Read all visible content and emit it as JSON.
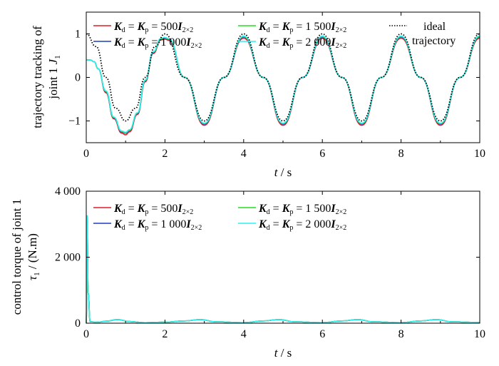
{
  "chart_data": [
    {
      "type": "line",
      "ylabel_line1": "trajectory tracking of",
      "ylabel_line2_prefix": "joint 1 ",
      "ylabel_var": "J",
      "ylabel_sub": "1",
      "xlabel_var": "t",
      "xlabel_unit": " / s",
      "xlim": [
        0,
        10
      ],
      "ylim": [
        -1.5,
        1.5
      ],
      "xticks": [
        "0",
        "2",
        "4",
        "6",
        "8",
        "10"
      ],
      "yticks": [
        "1",
        "0",
        "−1"
      ],
      "grid": false,
      "legend_position": "top",
      "colors": {
        "kp500": "#e8192c",
        "kp1000": "#1c3fbf",
        "kp1500": "#22dd22",
        "kp2000": "#2ff0f0",
        "ideal": "#000000"
      },
      "series": [
        {
          "name": "Kd = Kp = 500 I2×2",
          "color": "kp500",
          "description_of_values": "sampled values",
          "x": [
            0,
            0.1,
            0.2,
            0.3,
            0.5,
            0.7,
            0.9,
            1.0,
            1.1,
            1.3,
            1.5,
            1.7,
            1.9,
            2.0,
            2.1,
            2.5,
            3.0,
            3.5,
            4.0,
            4.5,
            5.0,
            5.5,
            6.0,
            6.5,
            7.0,
            7.5,
            8.0,
            8.5,
            9.0,
            9.5,
            10.0
          ],
          "y": [
            0.4,
            0.4,
            0.36,
            0.2,
            -0.35,
            -0.95,
            -1.28,
            -1.32,
            -1.25,
            -0.85,
            -0.1,
            0.55,
            0.86,
            0.88,
            0.85,
            0.0,
            -1.1,
            0.0,
            0.9,
            0.0,
            -1.1,
            0.0,
            0.9,
            0.0,
            -1.1,
            0.0,
            0.9,
            0.0,
            -1.1,
            0.0,
            0.9
          ]
        },
        {
          "name": "Kd = Kp = 1 000 I2×2",
          "color": "kp1000",
          "x": [
            0,
            0.1,
            0.2,
            0.3,
            0.5,
            0.7,
            0.9,
            1.0,
            1.1,
            1.3,
            1.5,
            1.7,
            1.9,
            2.0,
            2.1,
            2.5,
            3.0,
            3.5,
            4.0,
            4.5,
            5.0,
            5.5,
            6.0,
            6.5,
            7.0,
            7.5,
            8.0,
            8.5,
            9.0,
            9.5,
            10.0
          ],
          "y": [
            0.4,
            0.4,
            0.36,
            0.2,
            -0.33,
            -0.93,
            -1.25,
            -1.28,
            -1.22,
            -0.83,
            -0.08,
            0.57,
            0.88,
            0.9,
            0.87,
            0.0,
            -1.07,
            0.0,
            0.93,
            0.0,
            -1.07,
            0.0,
            0.93,
            0.0,
            -1.07,
            0.0,
            0.93,
            0.0,
            -1.07,
            0.0,
            0.93
          ]
        },
        {
          "name": "Kd = Kp = 1 500 I2×2",
          "color": "kp1500",
          "x": [
            0,
            0.1,
            0.2,
            0.3,
            0.5,
            0.7,
            0.9,
            1.0,
            1.1,
            1.3,
            1.5,
            1.7,
            1.9,
            2.0,
            2.1,
            2.5,
            3.0,
            3.5,
            4.0,
            4.5,
            5.0,
            5.5,
            6.0,
            6.5,
            7.0,
            7.5,
            8.0,
            8.5,
            9.0,
            9.5,
            10.0
          ],
          "y": [
            0.4,
            0.4,
            0.36,
            0.2,
            -0.32,
            -0.92,
            -1.24,
            -1.27,
            -1.21,
            -0.82,
            -0.07,
            0.58,
            0.89,
            0.91,
            0.88,
            0.0,
            -1.06,
            0.0,
            0.94,
            0.0,
            -1.06,
            0.0,
            0.94,
            0.0,
            -1.06,
            0.0,
            0.94,
            0.0,
            -1.06,
            0.0,
            0.94
          ]
        },
        {
          "name": "Kd = Kp = 2 000 I2×2",
          "color": "kp2000",
          "x": [
            0,
            0.1,
            0.2,
            0.3,
            0.5,
            0.7,
            0.9,
            1.0,
            1.1,
            1.3,
            1.5,
            1.7,
            1.9,
            2.0,
            2.1,
            2.5,
            3.0,
            3.5,
            4.0,
            4.5,
            5.0,
            5.5,
            6.0,
            6.5,
            7.0,
            7.5,
            8.0,
            8.5,
            9.0,
            9.5,
            10.0
          ],
          "y": [
            0.4,
            0.4,
            0.36,
            0.2,
            -0.31,
            -0.91,
            -1.23,
            -1.26,
            -1.2,
            -0.81,
            -0.06,
            0.59,
            0.9,
            0.92,
            0.89,
            0.0,
            -1.05,
            0.0,
            0.95,
            0.0,
            -1.05,
            0.0,
            0.95,
            0.0,
            -1.05,
            0.0,
            0.95,
            0.0,
            -1.05,
            0.0,
            0.95
          ]
        },
        {
          "name": "ideal trajectory",
          "color": "ideal",
          "dotted": true,
          "x": [
            0,
            0.25,
            0.5,
            0.75,
            1.0,
            1.25,
            1.5,
            1.75,
            2.0,
            2.5,
            3.0,
            3.5,
            4.0,
            4.5,
            5.0,
            5.5,
            6.0,
            6.5,
            7.0,
            7.5,
            8.0,
            8.5,
            9.0,
            9.5,
            10.0
          ],
          "y": [
            1.0,
            0.71,
            0.0,
            -0.71,
            -1.0,
            -0.71,
            0.0,
            0.71,
            1.0,
            0.0,
            -1.0,
            0.0,
            1.0,
            0.0,
            -1.0,
            0.0,
            1.0,
            0.0,
            -1.0,
            0.0,
            1.0,
            0.0,
            -1.0,
            0.0,
            1.0
          ]
        }
      ]
    },
    {
      "type": "line",
      "ylabel_line1": "control torque of joint 1",
      "ylabel_var": "τ",
      "ylabel_sub": "1",
      "ylabel_unit": " / (N.m)",
      "xlabel_var": "t",
      "xlabel_unit": " / s",
      "xlim": [
        0,
        10
      ],
      "ylim": [
        0,
        4000
      ],
      "xticks": [
        "0",
        "2",
        "4",
        "6",
        "8",
        "10"
      ],
      "yticks": [
        "4 000",
        "2 000",
        "0"
      ],
      "grid": false,
      "legend_position": "top-left",
      "series": [
        {
          "name": "Kd = Kp = 500 I2×2",
          "color": "kp500",
          "x": [
            0,
            0.02,
            0.05,
            0.1,
            0.3,
            0.5,
            0.8,
            1.1,
            1.5,
            2.0,
            2.5,
            2.9,
            3.3,
            4.0,
            4.5,
            4.9,
            5.3,
            6.0,
            6.5,
            6.9,
            7.3,
            8.0,
            8.5,
            8.9,
            9.3,
            10.0
          ],
          "y": [
            0,
            3250,
            900,
            40,
            30,
            60,
            110,
            50,
            15,
            30,
            70,
            110,
            40,
            15,
            70,
            110,
            40,
            15,
            70,
            110,
            40,
            15,
            70,
            110,
            40,
            20
          ]
        },
        {
          "name": "Kd = Kp = 1 000 I2×2",
          "color": "kp1000",
          "x": [
            0,
            0.02,
            0.05,
            0.1,
            0.3,
            0.5,
            0.8,
            1.1,
            1.5,
            2.0,
            2.5,
            2.9,
            3.3,
            4.0,
            4.5,
            4.9,
            5.3,
            6.0,
            6.5,
            6.9,
            7.3,
            8.0,
            8.5,
            8.9,
            9.3,
            10.0
          ],
          "y": [
            0,
            3250,
            900,
            40,
            30,
            60,
            110,
            50,
            15,
            30,
            70,
            110,
            40,
            15,
            70,
            110,
            40,
            15,
            70,
            110,
            40,
            15,
            70,
            110,
            40,
            20
          ]
        },
        {
          "name": "Kd = Kp = 1 500 I2×2",
          "color": "kp1500",
          "x": [
            0,
            0.02,
            0.05,
            0.1,
            0.3,
            0.5,
            0.8,
            1.1,
            1.5,
            2.0,
            2.5,
            2.9,
            3.3,
            4.0,
            4.5,
            4.9,
            5.3,
            6.0,
            6.5,
            6.9,
            7.3,
            8.0,
            8.5,
            8.9,
            9.3,
            10.0
          ],
          "y": [
            0,
            3250,
            900,
            40,
            30,
            60,
            110,
            50,
            15,
            30,
            70,
            110,
            40,
            15,
            70,
            110,
            40,
            15,
            70,
            110,
            40,
            15,
            70,
            110,
            40,
            20
          ]
        },
        {
          "name": "Kd = Kp = 2 000 I2×2",
          "color": "kp2000",
          "x": [
            0,
            0.02,
            0.05,
            0.1,
            0.3,
            0.5,
            0.8,
            1.1,
            1.5,
            2.0,
            2.5,
            2.9,
            3.3,
            4.0,
            4.5,
            4.9,
            5.3,
            6.0,
            6.5,
            6.9,
            7.3,
            8.0,
            8.5,
            8.9,
            9.3,
            10.0
          ],
          "y": [
            0,
            3250,
            900,
            40,
            30,
            60,
            110,
            50,
            15,
            30,
            70,
            110,
            40,
            15,
            70,
            110,
            40,
            15,
            70,
            110,
            40,
            15,
            70,
            110,
            40,
            20
          ]
        }
      ]
    }
  ],
  "legend": {
    "eq": "= ",
    "kd": "K",
    "kd_sub": "d",
    "kp": "K",
    "kp_sub": "p",
    "I": "I",
    "I_sub": "2×2",
    "gains": [
      "500",
      "1 000",
      "1 500",
      "2 000"
    ],
    "ideal_line1": "ideal",
    "ideal_line2": "trajectory"
  }
}
